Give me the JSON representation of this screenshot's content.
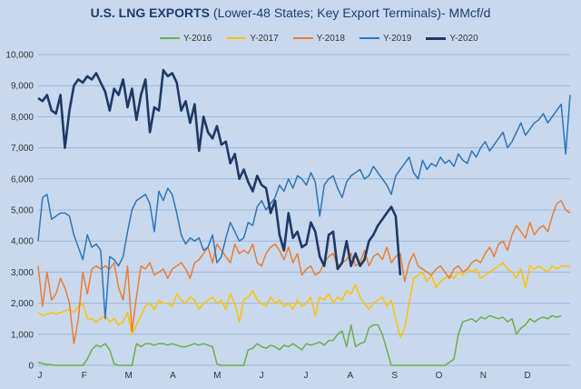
{
  "chart_data": {
    "type": "line",
    "title": "U.S. LNG EXPORTS",
    "subtitle": "(Lower-48 States; Key Export Terminals)- MMcf/d",
    "ylim": [
      0,
      10000
    ],
    "yticks": [
      "0",
      "1,000",
      "2,000",
      "3,000",
      "4,000",
      "5,000",
      "6,000",
      "7,000",
      "8,000",
      "9,000",
      "10,000"
    ],
    "xticks": [
      "J",
      "F",
      "M",
      "A",
      "M",
      "J",
      "J",
      "A",
      "S",
      "O",
      "N",
      "D"
    ],
    "x_unit": "week",
    "grid": true,
    "legend_position": "top",
    "series": [
      {
        "name": "Y-2016",
        "color": "#70ad47",
        "values": [
          100,
          60,
          30,
          20,
          0,
          0,
          0,
          0,
          0,
          0,
          0,
          200,
          500,
          650,
          600,
          700,
          500,
          50,
          0,
          0,
          0,
          0,
          700,
          600,
          700,
          700,
          650,
          700,
          700,
          650,
          700,
          650,
          600,
          600,
          650,
          700,
          650,
          700,
          650,
          600,
          50,
          0,
          0,
          0,
          0,
          0,
          0,
          500,
          550,
          700,
          600,
          550,
          650,
          600,
          500,
          650,
          600,
          700,
          600,
          500,
          700,
          650,
          700,
          750,
          650,
          800,
          800,
          1000,
          1100,
          600,
          1300,
          600,
          700,
          750,
          1200,
          1300,
          1300,
          1000,
          500,
          0,
          0,
          0,
          0,
          0,
          0,
          0,
          0,
          0,
          0,
          0,
          0,
          0,
          100,
          200,
          1000,
          1400,
          1450,
          1500,
          1400,
          1550,
          1500,
          1600,
          1550,
          1500,
          1550,
          1400,
          1500,
          1000,
          1200,
          1300,
          1500,
          1400,
          1500,
          1550,
          1500,
          1600,
          1550,
          1600
        ]
      },
      {
        "name": "Y-2017",
        "color": "#ffc000",
        "values": [
          1700,
          1600,
          1650,
          1700,
          1650,
          1700,
          1750,
          1800,
          1700,
          1900,
          2000,
          1500,
          1500,
          1400,
          1500,
          1600,
          1400,
          1500,
          1300,
          1400,
          1700,
          1000,
          1300,
          1600,
          1900,
          2000,
          1800,
          2100,
          2000,
          2000,
          1900,
          2300,
          2100,
          2000,
          2200,
          2100,
          1800,
          2000,
          2100,
          2200,
          2000,
          2100,
          1800,
          2300,
          2000,
          1400,
          2100,
          2200,
          2400,
          2100,
          2000,
          1900,
          2200,
          2000,
          2100,
          1900,
          2000,
          1800,
          2100,
          1900,
          2000,
          2200,
          1600,
          2200,
          2100,
          2300,
          2000,
          2200,
          2100,
          2400,
          2300,
          2600,
          2200,
          2000,
          1800,
          2000,
          2100,
          2200,
          1900,
          2100,
          1500,
          900,
          1200,
          2000,
          2800,
          2900,
          3000,
          2700,
          2900,
          2500,
          2700,
          2800,
          2900,
          2800,
          3000,
          2900,
          3100,
          3000,
          3100,
          2800,
          2900,
          3000,
          3100,
          3200,
          3300,
          3100,
          3000,
          2800,
          3100,
          2500,
          3200,
          3100,
          3200,
          3100,
          3000,
          3200,
          3100,
          3200,
          3200,
          3200
        ]
      },
      {
        "name": "Y-2018",
        "color": "#ed7d31",
        "values": [
          3200,
          1900,
          3000,
          2100,
          2300,
          2800,
          2500,
          2000,
          700,
          1500,
          3000,
          2300,
          3100,
          3200,
          3100,
          3200,
          3100,
          3300,
          2500,
          2100,
          3200,
          1100,
          2200,
          3200,
          3100,
          3300,
          2900,
          3000,
          3100,
          2800,
          3100,
          3200,
          3300,
          3100,
          2800,
          3300,
          3400,
          3600,
          3800,
          3300,
          3900,
          3700,
          3500,
          3300,
          3900,
          3600,
          3700,
          3600,
          3900,
          3300,
          3200,
          3600,
          3800,
          3900,
          3700,
          3400,
          3800,
          3300,
          3600,
          2900,
          3100,
          3200,
          2900,
          3000,
          3300,
          3500,
          3600,
          3200,
          3300,
          3400,
          3600,
          3200,
          3300,
          3700,
          3200,
          3500,
          3600,
          3400,
          3800,
          3300,
          3500,
          3600,
          2700,
          3300,
          3600,
          3200,
          3100,
          3000,
          2900,
          3100,
          3200,
          3000,
          2800,
          3100,
          3200,
          3000,
          3100,
          3300,
          3400,
          3300,
          3600,
          3800,
          3500,
          3900,
          4000,
          3700,
          4200,
          4500,
          4300,
          4100,
          4600,
          4200,
          4400,
          4500,
          4300,
          4800,
          5200,
          5300,
          5000,
          4900
        ]
      },
      {
        "name": "Y-2019",
        "color": "#2e75b6",
        "values": [
          4000,
          5400,
          5500,
          4700,
          4800,
          4900,
          4900,
          4800,
          4200,
          3800,
          3400,
          4200,
          3800,
          3900,
          3700,
          1500,
          3500,
          3400,
          3200,
          3500,
          4300,
          5000,
          5300,
          5400,
          5500,
          5200,
          4300,
          5600,
          5300,
          5700,
          5500,
          4900,
          4200,
          3900,
          4100,
          4000,
          4100,
          3700,
          3800,
          4200,
          3300,
          3500,
          4100,
          4600,
          4300,
          4000,
          4100,
          4600,
          4500,
          5100,
          5300,
          5000,
          5200,
          5400,
          5800,
          5600,
          6000,
          5700,
          6100,
          6000,
          5800,
          6200,
          5900,
          4800,
          5800,
          6000,
          6100,
          5700,
          5400,
          5900,
          6100,
          6200,
          6300,
          6000,
          6100,
          6400,
          6200,
          6000,
          5800,
          5500,
          6100,
          6300,
          6500,
          6700,
          6200,
          6000,
          6600,
          6300,
          6500,
          6400,
          6700,
          6500,
          6600,
          6400,
          6800,
          6600,
          6500,
          6900,
          6700,
          7000,
          7200,
          6900,
          7100,
          7300,
          7500,
          7000,
          7200,
          7500,
          7800,
          7400,
          7600,
          7800,
          7900,
          8100,
          7800,
          8000,
          8200,
          8400,
          6800,
          8700
        ]
      },
      {
        "name": "Y-2020",
        "color": "#1f3864",
        "thick": true,
        "values": [
          8600,
          8500,
          8700,
          8200,
          8100,
          8700,
          7000,
          8200,
          9000,
          9200,
          9100,
          9300,
          9200,
          9400,
          9100,
          8800,
          8200,
          8900,
          8700,
          9200,
          8300,
          8900,
          7900,
          8700,
          9200,
          7500,
          8300,
          8200,
          9500,
          9300,
          9400,
          9100,
          8200,
          8500,
          7800,
          8400,
          6900,
          8000,
          7500,
          7300,
          7700,
          7100,
          7200,
          6500,
          6800,
          6000,
          6300,
          5900,
          5600,
          6100,
          5800,
          5700,
          4900,
          5300,
          4200,
          3700,
          4900,
          4100,
          4300,
          3800,
          3900,
          4600,
          4300,
          3500,
          3200,
          4200,
          4300,
          3100,
          3300,
          4000,
          3200,
          3600,
          3200,
          3400,
          4000,
          4200,
          4500,
          4700,
          4900,
          5100,
          4800,
          2900
        ]
      }
    ]
  }
}
